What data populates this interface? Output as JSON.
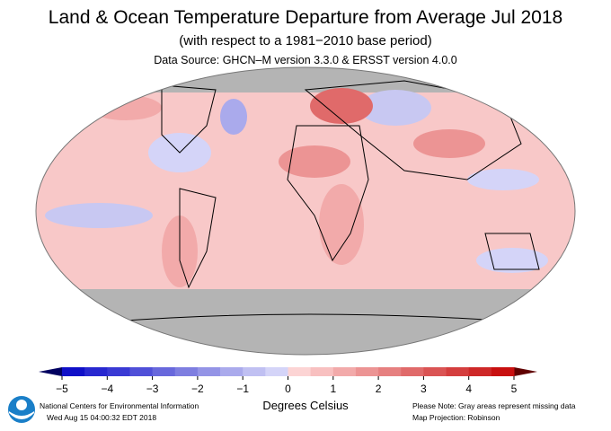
{
  "header": {
    "title": "Land & Ocean Temperature Departure from Average Jul 2018",
    "subtitle": "(with respect to a 1981−2010 base period)",
    "source": "Data Source: GHCN–M version 3.3.0 & ERSST version 4.0.0"
  },
  "colorbar": {
    "ticks": [
      "−5",
      "−4",
      "−3",
      "−2",
      "−1",
      "0",
      "1",
      "2",
      "3",
      "4",
      "5"
    ],
    "range": [
      -5,
      5
    ],
    "step": 0.5,
    "colors": [
      "#1010c8",
      "#2828d0",
      "#3a3ad4",
      "#5050d8",
      "#6868dc",
      "#7e7ee0",
      "#9494e6",
      "#aaaaec",
      "#c0c0f2",
      "#d4d4f8",
      "#fcd4d4",
      "#f8c0c0",
      "#f2aaaa",
      "#ec9494",
      "#e68080",
      "#e06a6a",
      "#da5454",
      "#d43e3e",
      "#ce2828",
      "#c81010"
    ],
    "under_color": "#000060",
    "over_color": "#600000",
    "label": "Degrees Celsius"
  },
  "footer": {
    "org": "National Centers for Environmental Information",
    "timestamp": "Wed Aug 15 04:00:32 EDT 2018",
    "note": "Please Note: Gray areas represent missing data",
    "projection": "Map Projection: Robinson",
    "logo_text": "NOAA"
  },
  "map": {
    "missing_color": "#b4b4b4"
  }
}
